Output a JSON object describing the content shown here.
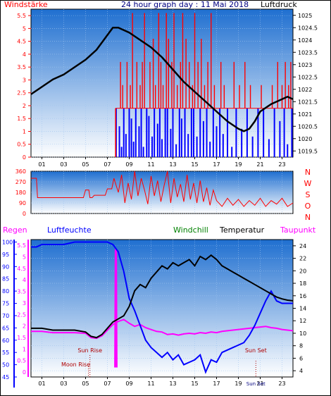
{
  "page_title": "24 hour graph day : 11 Mai 2018",
  "colors": {
    "wind": "#ff0000",
    "gust": "#0000ff",
    "pressure": "#000000",
    "direction": "#ff0000",
    "humidity": "#0000ff",
    "temperature": "#000000",
    "dewpoint": "#ff00ff",
    "rain": "#ff00ff",
    "windchill": "#008000",
    "panel_top": "#1f6fd0",
    "panel_bottom": "#ffffff"
  },
  "chart_data": [
    {
      "id": "wind_pressure",
      "type": "line",
      "title": "24 hour graph day : 11 Mai 2018",
      "left_label": "Windstärke",
      "right_label": "Luftdruck",
      "x_ticks": [
        "01",
        "03",
        "05",
        "07",
        "09",
        "11",
        "13",
        "15",
        "17",
        "19",
        "21",
        "23"
      ],
      "y_left_ticks": [
        "0",
        "0.5",
        "1",
        "1.5",
        "2",
        "2.5",
        "3",
        "3.5",
        "4",
        "4.5",
        "5",
        "5.5"
      ],
      "y_right_ticks": [
        "1019.5",
        "1020",
        "1020.5",
        "1021",
        "1021.5",
        "1022",
        "1022.5",
        "1023",
        "1023.5",
        "1024",
        "1024.5",
        "1025"
      ],
      "ylim_left": [
        0,
        5.75
      ],
      "ylim_right": [
        1019.25,
        1025.25
      ],
      "xlim": [
        0,
        24
      ],
      "series": [
        {
          "name": "Windstärke",
          "axis": "left",
          "style": "spikes",
          "x": [
            7.9,
            8.2,
            8.4,
            8.6,
            8.8,
            9.1,
            9.3,
            9.5,
            9.7,
            10.0,
            10.2,
            10.4,
            10.7,
            10.9,
            11.2,
            11.4,
            11.7,
            11.9,
            12.1,
            12.4,
            12.6,
            12.9,
            13.1,
            13.4,
            13.7,
            13.9,
            14.2,
            14.5,
            14.8,
            15.0,
            15.3,
            15.6,
            15.9,
            16.2,
            16.5,
            16.8,
            17.1,
            17.4,
            17.7,
            18.2,
            18.6,
            19.1,
            19.6,
            20.1,
            20.6,
            21.1,
            21.6,
            22.1,
            22.6,
            23.0,
            23.3,
            23.6,
            23.8
          ],
          "values": [
            1.9,
            3.7,
            2.8,
            1.9,
            3.7,
            2.8,
            5.6,
            1.9,
            3.7,
            2.8,
            3.7,
            5.6,
            1.9,
            3.7,
            4.6,
            2.8,
            5.6,
            3.7,
            2.8,
            5.6,
            4.6,
            3.7,
            5.6,
            2.8,
            3.7,
            5.6,
            4.6,
            3.7,
            2.8,
            5.6,
            3.7,
            4.6,
            2.8,
            3.7,
            5.6,
            2.8,
            1.9,
            3.7,
            2.8,
            1.9,
            3.7,
            2.8,
            3.7,
            2.8,
            1.9,
            2.8,
            1.9,
            2.8,
            3.7,
            2.8,
            3.7,
            2.8,
            3.7
          ]
        },
        {
          "name": "Böen",
          "axis": "left",
          "style": "spikes",
          "x": [
            7.8,
            8.1,
            8.3,
            8.5,
            8.7,
            9.0,
            9.2,
            9.4,
            9.6,
            9.9,
            10.1,
            10.3,
            10.6,
            10.8,
            11.1,
            11.3,
            11.6,
            11.8,
            12.0,
            12.3,
            12.5,
            12.8,
            13.0,
            13.3,
            13.6,
            13.8,
            14.1,
            14.4,
            14.7,
            14.9,
            15.2,
            15.5,
            15.8,
            16.1,
            16.4,
            16.7,
            17.0,
            17.3,
            17.6,
            18.0,
            18.4,
            18.8,
            19.3,
            19.8,
            20.3,
            20.8,
            21.3,
            21.8,
            22.3,
            22.8,
            23.2,
            23.5,
            23.9
          ],
          "values": [
            1.9,
            1.2,
            0.4,
            1.9,
            0.9,
            1.9,
            1.5,
            0.6,
            1.9,
            1.2,
            1.9,
            0.4,
            1.9,
            1.6,
            0.8,
            1.9,
            1.3,
            1.9,
            0.7,
            1.9,
            1.9,
            1.1,
            1.9,
            0.5,
            1.9,
            1.5,
            1.9,
            0.9,
            1.9,
            1.9,
            0.8,
            1.9,
            1.4,
            1.9,
            0.6,
            1.9,
            1.2,
            1.9,
            0.9,
            1.9,
            0.4,
            1.9,
            1.1,
            1.9,
            0.8,
            1.9,
            1.9,
            0.7,
            1.9,
            1.4,
            1.9,
            0.5,
            1.9
          ]
        },
        {
          "name": "Luftdruck",
          "axis": "right",
          "style": "line",
          "x": [
            0,
            1,
            2,
            3,
            4,
            5,
            6,
            7,
            7.5,
            8,
            8.5,
            9,
            10,
            11,
            12,
            13,
            14,
            15,
            16,
            17,
            18,
            19,
            19.5,
            20,
            20.5,
            21,
            22,
            23,
            23.5,
            24
          ],
          "values": [
            1021.8,
            1022.1,
            1022.4,
            1022.6,
            1022.9,
            1023.2,
            1023.6,
            1024.2,
            1024.5,
            1024.5,
            1024.4,
            1024.3,
            1024.0,
            1023.7,
            1023.3,
            1022.8,
            1022.3,
            1021.9,
            1021.5,
            1021.1,
            1020.7,
            1020.4,
            1020.3,
            1020.4,
            1020.7,
            1021.1,
            1021.4,
            1021.6,
            1021.7,
            1021.6
          ]
        }
      ]
    },
    {
      "id": "wind_direction",
      "type": "line",
      "left_ticks": [
        "0",
        "90",
        "180",
        "270",
        "360"
      ],
      "right_labels": [
        "N",
        "W",
        "S",
        "O",
        "N"
      ],
      "ylim": [
        0,
        360
      ],
      "xlim": [
        0,
        24
      ],
      "series": [
        {
          "name": "Windrichtung",
          "style": "line",
          "x": [
            0,
            0.5,
            0.6,
            4.8,
            5.0,
            5.3,
            5.4,
            5.6,
            5.8,
            6.8,
            7.0,
            7.4,
            7.6,
            8.0,
            8.3,
            8.6,
            8.9,
            9.2,
            9.5,
            9.8,
            10.1,
            10.4,
            10.7,
            11.0,
            11.3,
            11.6,
            11.9,
            12.2,
            12.5,
            12.8,
            13.1,
            13.4,
            13.7,
            14.0,
            14.3,
            14.6,
            14.9,
            15.2,
            15.5,
            15.8,
            16.1,
            16.4,
            16.7,
            17.0,
            17.5,
            18.0,
            18.5,
            19.0,
            19.5,
            20.0,
            20.5,
            21.0,
            21.5,
            22.0,
            22.5,
            23.0,
            23.5,
            24.0
          ],
          "values": [
            300,
            300,
            135,
            135,
            200,
            200,
            135,
            135,
            155,
            155,
            210,
            210,
            300,
            180,
            330,
            90,
            260,
            120,
            360,
            150,
            300,
            200,
            80,
            320,
            150,
            280,
            100,
            240,
            360,
            90,
            300,
            140,
            250,
            100,
            330,
            120,
            260,
            90,
            280,
            100,
            220,
            70,
            200,
            110,
            60,
            130,
            70,
            120,
            60,
            110,
            70,
            130,
            60,
            110,
            80,
            130,
            60,
            90
          ]
        }
      ]
    },
    {
      "id": "temp_humidity",
      "type": "line",
      "legend": [
        "Regen",
        "Luftfeuchte",
        "Windchill",
        "Temperatur",
        "Taupunkt"
      ],
      "left_ticks_humidity": [
        "45",
        "50",
        "55",
        "60",
        "65",
        "70",
        "75",
        "80",
        "85",
        "90",
        "95",
        "100"
      ],
      "left_ticks_rain": [
        "0",
        "0.5",
        "1",
        "1.5",
        "2",
        "2.5",
        "3",
        "3.5",
        "4",
        "4.5",
        "5",
        "5.5"
      ],
      "right_ticks_temp": [
        "4",
        "6",
        "8",
        "10",
        "12",
        "14",
        "16",
        "18",
        "20",
        "22",
        "24"
      ],
      "ylim_humidity": [
        45,
        101
      ],
      "ylim_temp": [
        3,
        25
      ],
      "xlim": [
        0,
        24
      ],
      "x_ticks": [
        "01",
        "03",
        "05",
        "07",
        "09",
        "11",
        "13",
        "15",
        "17",
        "19",
        "21",
        "23"
      ],
      "annotations": [
        {
          "text": "Sun Rise",
          "x": 5.4
        },
        {
          "text": "Moon Rise",
          "x": 4.1
        },
        {
          "text": "Sun Set",
          "x": 20.6
        }
      ],
      "bottom_mark": {
        "text": "Sun Set",
        "x": 20.6
      },
      "series": [
        {
          "name": "Luftfeuchte",
          "axis": "humidity",
          "x": [
            0,
            0.5,
            1,
            2,
            3,
            4,
            5,
            6,
            7,
            7.5,
            8,
            8.5,
            9,
            9.5,
            10,
            10.5,
            11,
            11.5,
            12,
            12.5,
            13,
            13.5,
            14,
            14.5,
            15,
            15.5,
            16,
            16.5,
            17,
            17.5,
            18,
            18.5,
            19,
            19.5,
            20,
            20.5,
            21,
            21.5,
            22,
            22.5,
            23,
            23.5,
            24
          ],
          "values": [
            98,
            98,
            99,
            99,
            99,
            100,
            100,
            100,
            100,
            99,
            96,
            88,
            77,
            72,
            66,
            60,
            57,
            55,
            53,
            55,
            52,
            54,
            50,
            51,
            52,
            54,
            47,
            52,
            51,
            55,
            56,
            57,
            58,
            59,
            62,
            66,
            71,
            76,
            80,
            76,
            75,
            75,
            75
          ]
        },
        {
          "name": "Temperatur",
          "axis": "temp",
          "x": [
            0,
            1,
            2,
            3,
            4,
            5,
            5.5,
            6,
            6.5,
            7,
            7.5,
            8,
            8.5,
            9,
            9.5,
            10,
            10.5,
            11,
            11.5,
            12,
            12.5,
            13,
            13.5,
            14,
            14.5,
            15,
            15.5,
            16,
            16.5,
            17,
            17.5,
            18,
            18.5,
            19,
            19.5,
            20,
            20.5,
            21,
            21.5,
            22,
            22.5,
            23,
            23.5,
            24
          ],
          "values": [
            10.8,
            10.8,
            10.5,
            10.5,
            10.5,
            10.2,
            9.5,
            9.3,
            9.8,
            10.8,
            11.8,
            12.3,
            12.8,
            14.3,
            16.8,
            17.8,
            17.3,
            18.8,
            19.8,
            20.8,
            20.3,
            21.3,
            20.8,
            21.3,
            21.8,
            20.8,
            22.3,
            21.8,
            22.5,
            21.8,
            20.8,
            20.3,
            19.8,
            19.3,
            18.8,
            18.3,
            17.8,
            17.3,
            16.8,
            16.3,
            15.8,
            15.5,
            15.3,
            15.2
          ]
        },
        {
          "name": "Taupunkt",
          "axis": "temp",
          "x": [
            0,
            1,
            2,
            3,
            4,
            5,
            5.5,
            6,
            6.5,
            7,
            7.5,
            8,
            8.5,
            9,
            9.5,
            10,
            10.5,
            11,
            11.5,
            12,
            12.5,
            13,
            13.5,
            14,
            14.5,
            15,
            15.5,
            16,
            16.5,
            17,
            17.5,
            18,
            18.5,
            19,
            19.5,
            20,
            20.5,
            21,
            21.5,
            22,
            22.5,
            23,
            23.5,
            24
          ],
          "values": [
            10.3,
            10.3,
            10.1,
            10.1,
            10.1,
            10.0,
            9.3,
            9.2,
            9.6,
            10.5,
            11.4,
            11.9,
            12.2,
            11.6,
            11.1,
            11.4,
            10.9,
            10.6,
            10.3,
            10.2,
            9.8,
            9.9,
            9.7,
            9.9,
            10.0,
            9.9,
            10.1,
            10.0,
            10.2,
            10.1,
            10.3,
            10.4,
            10.5,
            10.6,
            10.7,
            10.8,
            10.9,
            11.0,
            11.1,
            10.9,
            10.8,
            10.6,
            10.5,
            10.4
          ]
        },
        {
          "name": "Regen",
          "axis": "rain",
          "x": [
            7.7,
            7.75,
            7.8,
            7.85
          ],
          "values": [
            0.2,
            5.3,
            5.3,
            0.2
          ]
        }
      ]
    }
  ]
}
